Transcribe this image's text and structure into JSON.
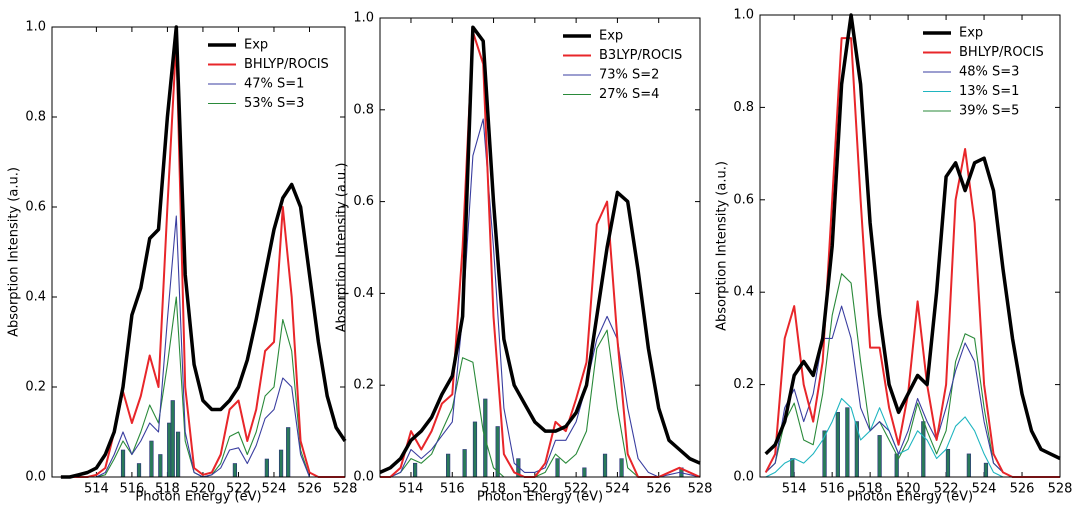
{
  "chart_data": [
    {
      "type": "line",
      "xlabel": "Photon Energy (eV)",
      "ylabel": "Absorption Intensity (a.u.)",
      "xlim": [
        511.5,
        528
      ],
      "xticks": [
        514,
        516,
        518,
        520,
        522,
        524,
        526,
        528
      ],
      "ylim": [
        0,
        1
      ],
      "yticks": [
        {
          "value": 0,
          "label": "0.0"
        },
        0.2,
        0.4,
        0.6,
        0.8,
        {
          "value": 1,
          "label": "1.0"
        }
      ],
      "legend": "upper right",
      "x": [
        512,
        512.5,
        513,
        513.5,
        514,
        514.5,
        515,
        515.5,
        516,
        516.5,
        517,
        517.5,
        518,
        518.5,
        519,
        519.5,
        520,
        520.5,
        521,
        521.5,
        522,
        522.5,
        523,
        523.5,
        524,
        524.5,
        525,
        525.5,
        526,
        526.5,
        527,
        527.5,
        528
      ],
      "series": [
        {
          "name": "Exp",
          "color": "#000000",
          "values": [
            0,
            0,
            0.005,
            0.01,
            0.02,
            0.05,
            0.1,
            0.2,
            0.36,
            0.42,
            0.53,
            0.55,
            0.8,
            1.0,
            0.45,
            0.25,
            0.17,
            0.15,
            0.15,
            0.17,
            0.2,
            0.26,
            0.35,
            0.45,
            0.55,
            0.62,
            0.65,
            0.6,
            0.45,
            0.3,
            0.18,
            0.11,
            0.08
          ]
        },
        {
          "name": "BHLYP/ROCIS",
          "color": "#e8262a",
          "values": [
            0,
            0,
            0,
            0,
            0.005,
            0.02,
            0.1,
            0.19,
            0.12,
            0.18,
            0.27,
            0.2,
            0.6,
            0.97,
            0.2,
            0.02,
            0.005,
            0.01,
            0.05,
            0.15,
            0.17,
            0.08,
            0.15,
            0.28,
            0.3,
            0.6,
            0.4,
            0.08,
            0.01,
            0,
            0,
            0,
            0
          ]
        },
        {
          "name": "47% S=1",
          "color": "#3a3ea0",
          "values": [
            0,
            0,
            0,
            0,
            0,
            0.01,
            0.05,
            0.1,
            0.05,
            0.08,
            0.12,
            0.1,
            0.35,
            0.58,
            0.1,
            0.01,
            0,
            0.005,
            0.02,
            0.06,
            0.065,
            0.03,
            0.07,
            0.13,
            0.15,
            0.22,
            0.2,
            0.05,
            0,
            0,
            0,
            0,
            0
          ]
        },
        {
          "name": "53% S=3",
          "color": "#2a8a3a",
          "values": [
            0,
            0,
            0,
            0,
            0,
            0.005,
            0.04,
            0.08,
            0.05,
            0.1,
            0.16,
            0.12,
            0.25,
            0.4,
            0.08,
            0.01,
            0,
            0.005,
            0.03,
            0.09,
            0.1,
            0.05,
            0.1,
            0.18,
            0.2,
            0.35,
            0.28,
            0.06,
            0,
            0,
            0,
            0,
            0
          ]
        }
      ],
      "sticks": {
        "color": "#2a7a5a",
        "x": [
          515.5,
          516.4,
          517.1,
          517.6,
          518.1,
          518.3,
          518.6,
          521.8,
          523.6,
          524.4,
          524.8
        ],
        "values": [
          0.06,
          0.03,
          0.08,
          0.05,
          0.12,
          0.17,
          0.1,
          0.03,
          0.04,
          0.06,
          0.11
        ]
      }
    },
    {
      "type": "line",
      "xlabel": "Photon Energy (eV)",
      "ylabel": "Absorption Intensity (a.u.)",
      "xlim": [
        512.5,
        528
      ],
      "xticks": [
        514,
        516,
        518,
        520,
        522,
        524,
        526,
        528
      ],
      "ylim": [
        0,
        1
      ],
      "yticks": [
        {
          "value": 0,
          "label": "0.0"
        },
        0.2,
        0.4,
        0.6,
        0.8,
        {
          "value": 1,
          "label": "1.0"
        }
      ],
      "legend": "upper right",
      "x": [
        512.5,
        513,
        513.5,
        514,
        514.5,
        515,
        515.5,
        516,
        516.5,
        517,
        517.5,
        518,
        518.5,
        519,
        519.5,
        520,
        520.5,
        521,
        521.5,
        522,
        522.5,
        523,
        523.5,
        524,
        524.5,
        525,
        525.5,
        526,
        526.5,
        527,
        527.5,
        528
      ],
      "series": [
        {
          "name": "Exp",
          "color": "#000000",
          "values": [
            0.01,
            0.02,
            0.04,
            0.08,
            0.1,
            0.13,
            0.18,
            0.22,
            0.35,
            0.98,
            0.95,
            0.6,
            0.3,
            0.2,
            0.16,
            0.12,
            0.1,
            0.1,
            0.11,
            0.14,
            0.2,
            0.35,
            0.5,
            0.62,
            0.6,
            0.45,
            0.28,
            0.15,
            0.08,
            0.06,
            0.04,
            0.03
          ]
        },
        {
          "name": "B3LYP/ROCIS",
          "color": "#e8262a",
          "values": [
            0,
            0,
            0.02,
            0.1,
            0.06,
            0.1,
            0.16,
            0.18,
            0.5,
            0.97,
            0.9,
            0.35,
            0.05,
            0.01,
            0,
            0,
            0.03,
            0.12,
            0.1,
            0.17,
            0.25,
            0.55,
            0.6,
            0.3,
            0.05,
            0,
            0,
            0,
            0.01,
            0.02,
            0.01,
            0
          ]
        },
        {
          "name": "73% S=2",
          "color": "#3a3ea0",
          "values": [
            0,
            0,
            0.01,
            0.06,
            0.04,
            0.06,
            0.09,
            0.12,
            0.35,
            0.7,
            0.78,
            0.5,
            0.15,
            0.03,
            0.01,
            0.01,
            0.02,
            0.08,
            0.08,
            0.12,
            0.2,
            0.3,
            0.35,
            0.3,
            0.15,
            0.04,
            0.01,
            0,
            0.005,
            0.01,
            0.005,
            0
          ]
        },
        {
          "name": "27% S=4",
          "color": "#2a8a3a",
          "values": [
            0,
            0,
            0.01,
            0.04,
            0.03,
            0.05,
            0.1,
            0.15,
            0.26,
            0.25,
            0.1,
            0.02,
            0,
            0,
            0,
            0,
            0.01,
            0.05,
            0.03,
            0.05,
            0.1,
            0.28,
            0.32,
            0.15,
            0.02,
            0,
            0,
            0,
            0,
            0,
            0,
            0
          ]
        }
      ],
      "sticks": {
        "color": "#2a7a5a",
        "x": [
          514.2,
          515.8,
          516.6,
          517.1,
          517.6,
          518.2,
          519.2,
          521.1,
          522.4,
          523.4,
          524.2,
          527.1
        ],
        "values": [
          0.03,
          0.05,
          0.06,
          0.12,
          0.17,
          0.11,
          0.04,
          0.04,
          0.02,
          0.05,
          0.04,
          0.02
        ]
      }
    },
    {
      "type": "line",
      "xlabel": "Photon Energy (eV)",
      "ylabel": "Absorption Intensity (a.u.)",
      "xlim": [
        512.2,
        528
      ],
      "xticks": [
        514,
        516,
        518,
        520,
        522,
        524,
        526,
        528
      ],
      "ylim": [
        0,
        1
      ],
      "yticks": [
        {
          "value": 0,
          "label": "0.0"
        },
        0.2,
        0.4,
        0.6,
        0.8,
        {
          "value": 1,
          "label": "1.0"
        }
      ],
      "legend": "upper right",
      "x": [
        512.5,
        513,
        513.5,
        514,
        514.5,
        515,
        515.5,
        516,
        516.5,
        517,
        517.5,
        518,
        518.5,
        519,
        519.5,
        520,
        520.5,
        521,
        521.5,
        522,
        522.5,
        523,
        523.5,
        524,
        524.5,
        525,
        525.5,
        526,
        526.5,
        527,
        527.5,
        528
      ],
      "series": [
        {
          "name": "Exp",
          "color": "#000000",
          "values": [
            0.05,
            0.07,
            0.12,
            0.22,
            0.25,
            0.22,
            0.3,
            0.5,
            0.85,
            1.0,
            0.85,
            0.55,
            0.35,
            0.2,
            0.14,
            0.18,
            0.22,
            0.2,
            0.4,
            0.65,
            0.68,
            0.62,
            0.68,
            0.69,
            0.62,
            0.45,
            0.3,
            0.18,
            0.1,
            0.06,
            0.05,
            0.04
          ]
        },
        {
          "name": "BHLYP/ROCIS",
          "color": "#e8262a",
          "values": [
            0.01,
            0.05,
            0.3,
            0.37,
            0.2,
            0.12,
            0.25,
            0.6,
            0.95,
            0.95,
            0.6,
            0.28,
            0.28,
            0.15,
            0.07,
            0.18,
            0.38,
            0.2,
            0.08,
            0.2,
            0.6,
            0.71,
            0.55,
            0.2,
            0.05,
            0.01,
            0,
            0,
            0,
            0,
            0,
            0
          ]
        },
        {
          "name": "48% S=3",
          "color": "#3a3ea0",
          "values": [
            0.01,
            0.03,
            0.15,
            0.19,
            0.12,
            0.18,
            0.3,
            0.3,
            0.37,
            0.3,
            0.15,
            0.1,
            0.12,
            0.1,
            0.05,
            0.1,
            0.17,
            0.12,
            0.08,
            0.15,
            0.23,
            0.29,
            0.25,
            0.12,
            0.03,
            0.01,
            0,
            0,
            0,
            0,
            0,
            0
          ]
        },
        {
          "name": "13% S=1",
          "color": "#1fb5c0",
          "values": [
            0,
            0.01,
            0.03,
            0.04,
            0.03,
            0.05,
            0.08,
            0.12,
            0.17,
            0.15,
            0.08,
            0.1,
            0.15,
            0.1,
            0.05,
            0.06,
            0.1,
            0.08,
            0.04,
            0.06,
            0.11,
            0.13,
            0.1,
            0.05,
            0.01,
            0,
            0,
            0,
            0,
            0,
            0,
            0
          ]
        },
        {
          "name": "39% S=5",
          "color": "#2a8a3a",
          "values": [
            0.01,
            0.03,
            0.12,
            0.16,
            0.08,
            0.07,
            0.18,
            0.35,
            0.44,
            0.42,
            0.25,
            0.1,
            0.12,
            0.08,
            0.04,
            0.08,
            0.16,
            0.1,
            0.05,
            0.1,
            0.25,
            0.31,
            0.3,
            0.15,
            0.03,
            0.01,
            0,
            0,
            0,
            0,
            0,
            0
          ]
        }
      ],
      "sticks": {
        "color": "#2a7a5a",
        "x": [
          513.9,
          515.6,
          516.3,
          516.8,
          517.3,
          518.5,
          519.4,
          520.8,
          522.1,
          523.2,
          524.1
        ],
        "values": [
          0.04,
          0.1,
          0.14,
          0.15,
          0.12,
          0.09,
          0.05,
          0.12,
          0.06,
          0.05,
          0.03
        ]
      }
    }
  ]
}
